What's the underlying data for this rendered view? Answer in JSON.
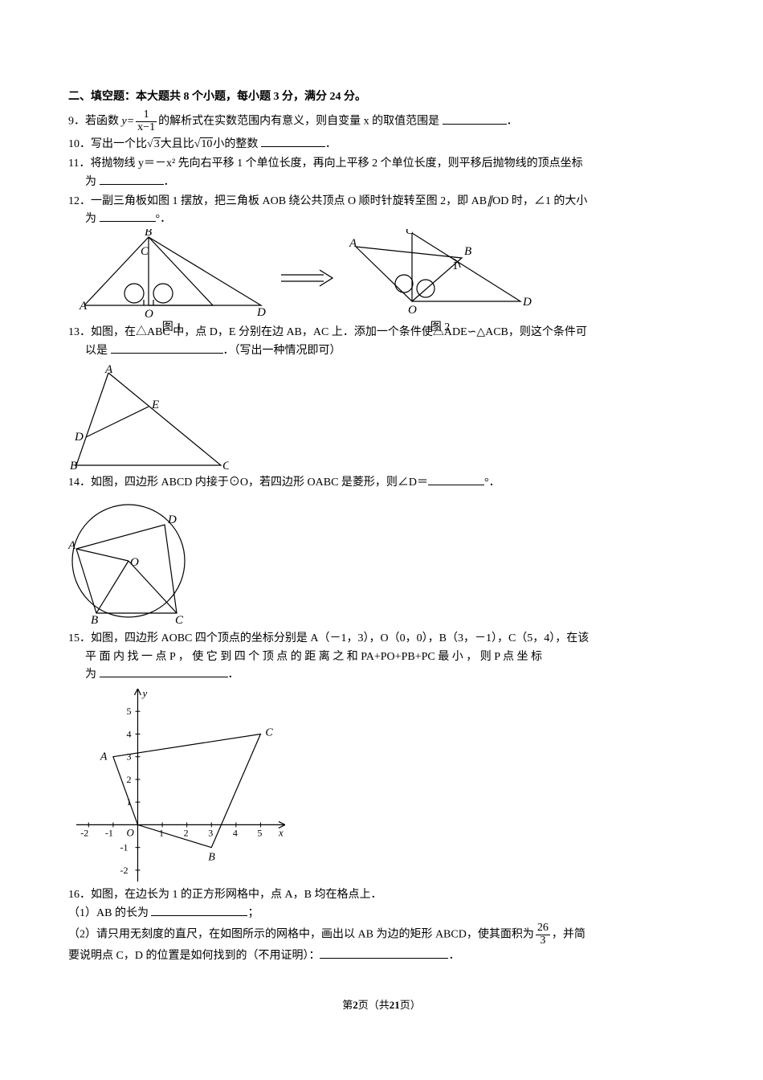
{
  "section_title": "二、填空题：本大题共 8 个小题，每小题 3 分，满分 24 分。",
  "q9": {
    "prefix": "9．若函数 ",
    "y_eq": "y=",
    "numerator": "1",
    "denominator": "x−1",
    "suffix": "的解析式在实数范围内有意义，则自变量 x 的取值范围是 ",
    "tail": "．"
  },
  "q10": {
    "text_a": "10．写出一个比",
    "root1": "√3",
    "text_b": "大且比",
    "root2": "√10",
    "text_c": "小的整数 ",
    "tail": "．"
  },
  "q11": {
    "line1": "11．将抛物线 y＝－x² 先向右平移 1 个单位长度，再向上平移 2 个单位长度，则平移后抛物线的顶点坐标",
    "line2_pre": "为 ",
    "tail": "．"
  },
  "q12": {
    "line1_a": "12．一副三角板如图 1 摆放，把三角板 AOB 绕公共顶点 O 顺时针旋转至图 2，即 AB",
    "parallel": "∥",
    "line1_b": "OD 时，∠1 的大小",
    "line2_pre": "为 ",
    "line2_deg": "°．",
    "fig1_caption": "图 1",
    "fig2_caption": "图 2",
    "fig1": {
      "points": {
        "A": "A",
        "B": "B",
        "C": "C",
        "O": "O",
        "D": "D"
      },
      "stroke": "#000000",
      "stroke_width": 1.2
    },
    "fig2": {
      "points": {
        "A": "A",
        "B": "B",
        "C": "C",
        "O": "O",
        "D": "D",
        "ang": "1"
      },
      "stroke": "#000000",
      "stroke_width": 1.2
    }
  },
  "q13": {
    "line1": "13．如图，在△ABC 中，点 D，E 分别在边 AB，AC 上．添加一个条件使△ADE∽△ACB，则这个条件可",
    "line2_pre": "以是 ",
    "line2_tail": "．（写出一种情况即可）",
    "fig": {
      "labels": {
        "A": "A",
        "B": "B",
        "C": "C",
        "D": "D",
        "E": "E"
      },
      "stroke": "#000000",
      "stroke_width": 1.2
    }
  },
  "q14": {
    "text_a": "14．如图，四边形 ABCD 内接于⊙O，若四边形 OABC 是菱形，则∠D＝",
    "tail": "°．",
    "fig": {
      "labels": {
        "A": "A",
        "B": "B",
        "C": "C",
        "D": "D",
        "O": "O"
      },
      "stroke": "#000000",
      "stroke_width": 1.2
    }
  },
  "q15": {
    "line1": "15．如图，四边形 AOBC 四个顶点的坐标分别是 A（－1，3），O（0，0），B（3，－1），C（5，4），在该",
    "line2": "平 面 内 找 一 点 P ， 使 它 到 四 个 顶 点 的 距 离 之 和 PA+PO+PB+PC 最 小 ， 则 P 点 坐 标",
    "line3_pre": "为 ",
    "tail": "．",
    "chart": {
      "bg": "#ffffff",
      "axis_color": "#000000",
      "stroke_width": 1.2,
      "xlim": [
        -2.5,
        6
      ],
      "ylim": [
        -2.5,
        6
      ],
      "xticks": [
        -2,
        -1,
        1,
        2,
        3,
        4,
        5
      ],
      "yticks": [
        -1,
        -2,
        1,
        2,
        3,
        4,
        5
      ],
      "points": {
        "A": {
          "x": -1,
          "y": 3,
          "label": "A"
        },
        "O": {
          "x": 0,
          "y": 0,
          "label": "O"
        },
        "B": {
          "x": 3,
          "y": -1,
          "label": "B"
        },
        "C": {
          "x": 5,
          "y": 4,
          "label": "C"
        }
      },
      "axis_labels": {
        "x": "x",
        "y": "y"
      }
    }
  },
  "q16": {
    "line1": "16．如图，在边长为 1 的正方形网格中，点 A，B 均在格点上．",
    "part1_pre": "（1）AB 的长为 ",
    "part1_tail": "；",
    "part2_a": "（2）请只用无刻度的直尺，在如图所示的网格中，画出以 AB 为边的矩形 ABCD，使其面积为",
    "frac_num": "26",
    "frac_den": "3",
    "part2_b": "，并简",
    "part2_c": "要说明点 C，D 的位置是如何找到的（不用证明）：",
    "part2_tail": "．"
  },
  "footer": {
    "pre": "第",
    "page": "2",
    "mid": "页（共",
    "total": "21",
    "post": "页）"
  }
}
